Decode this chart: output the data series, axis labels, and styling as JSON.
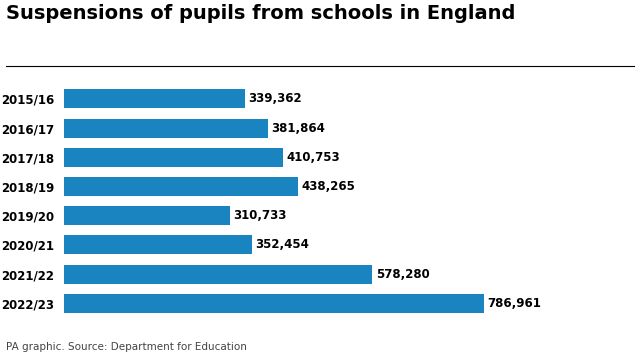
{
  "title": "Suspensions of pupils from schools in England",
  "categories": [
    "2015/16",
    "2016/17",
    "2017/18",
    "2018/19",
    "2019/20",
    "2020/21",
    "2021/22",
    "2022/23"
  ],
  "values": [
    339362,
    381864,
    410753,
    438265,
    310733,
    352454,
    578280,
    786961
  ],
  "labels": [
    "339,362",
    "381,864",
    "410,753",
    "438,265",
    "310,733",
    "352,454",
    "578,280",
    "786,961"
  ],
  "bar_color": "#1a84c1",
  "title_fontsize": 14,
  "label_fontsize": 8.5,
  "tick_fontsize": 8.5,
  "footnote": "PA graphic. Source: Department for Education",
  "footnote_fontsize": 7.5,
  "background_color": "#ffffff",
  "xlim": [
    0,
    900000
  ]
}
